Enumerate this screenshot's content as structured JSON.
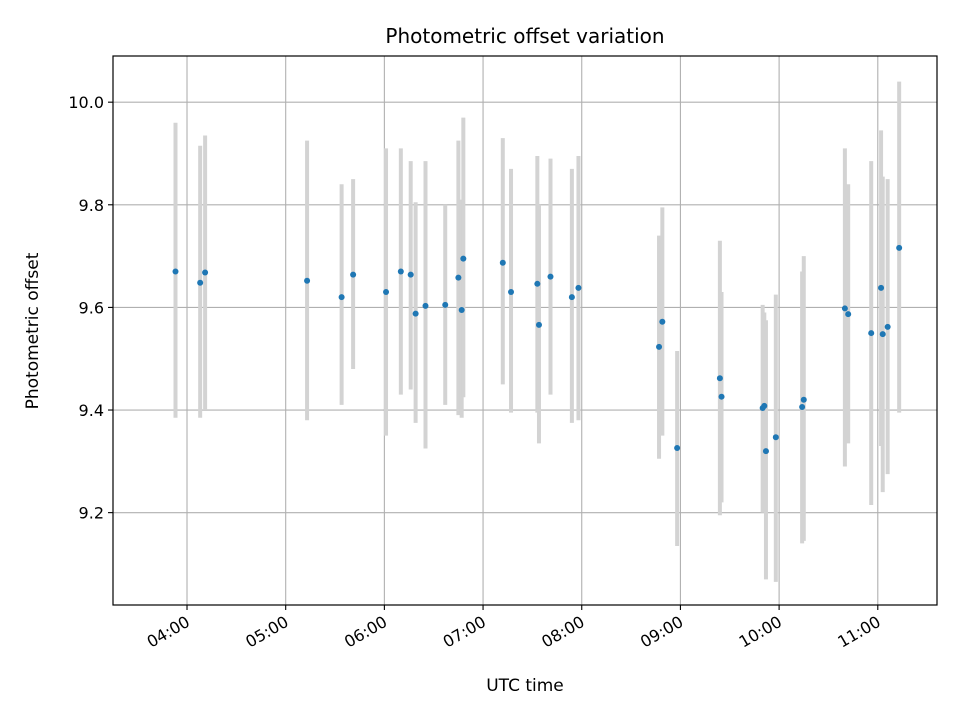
{
  "chart_data": {
    "type": "scatter",
    "title": "Photometric offset variation",
    "xlabel": "UTC time",
    "ylabel": "Photometric offset",
    "x_tick_labels": [
      "04:00",
      "05:00",
      "06:00",
      "07:00",
      "08:00",
      "09:00",
      "10:00",
      "11:00"
    ],
    "x_tick_hours": [
      4,
      5,
      6,
      7,
      8,
      9,
      10,
      11
    ],
    "y_ticks": [
      9.2,
      9.4,
      9.6,
      9.8,
      10.0
    ],
    "y_tick_labels": [
      "9.2",
      "9.4",
      "9.6",
      "9.8",
      "10.0"
    ],
    "xlim": [
      "03:15",
      "11:36"
    ],
    "ylim": [
      9.02,
      10.09
    ],
    "grid": true,
    "marker_color": "#1f77b4",
    "errorbar_color": "#d3d3d3",
    "series": [
      {
        "points": [
          {
            "x": "03:53",
            "y": 9.67,
            "lo": 9.385,
            "hi": 9.96
          },
          {
            "x": "04:08",
            "y": 9.648,
            "lo": 9.385,
            "hi": 9.915
          },
          {
            "x": "04:11",
            "y": 9.668,
            "lo": 9.4,
            "hi": 9.935
          },
          {
            "x": "05:13",
            "y": 9.652,
            "lo": 9.38,
            "hi": 9.925
          },
          {
            "x": "05:34",
            "y": 9.62,
            "lo": 9.41,
            "hi": 9.84
          },
          {
            "x": "05:41",
            "y": 9.664,
            "lo": 9.48,
            "hi": 9.85
          },
          {
            "x": "06:01",
            "y": 9.63,
            "lo": 9.35,
            "hi": 9.91
          },
          {
            "x": "06:10",
            "y": 9.67,
            "lo": 9.43,
            "hi": 9.91
          },
          {
            "x": "06:16",
            "y": 9.664,
            "lo": 9.44,
            "hi": 9.885
          },
          {
            "x": "06:19",
            "y": 9.588,
            "lo": 9.375,
            "hi": 9.805
          },
          {
            "x": "06:25",
            "y": 9.603,
            "lo": 9.325,
            "hi": 9.885
          },
          {
            "x": "06:37",
            "y": 9.605,
            "lo": 9.41,
            "hi": 9.8
          },
          {
            "x": "06:45",
            "y": 9.658,
            "lo": 9.39,
            "hi": 9.925
          },
          {
            "x": "06:47",
            "y": 9.595,
            "lo": 9.385,
            "hi": 9.81
          },
          {
            "x": "06:48",
            "y": 9.695,
            "lo": 9.425,
            "hi": 9.97
          },
          {
            "x": "07:12",
            "y": 9.687,
            "lo": 9.45,
            "hi": 9.93
          },
          {
            "x": "07:17",
            "y": 9.63,
            "lo": 9.395,
            "hi": 9.87
          },
          {
            "x": "07:33",
            "y": 9.646,
            "lo": 9.395,
            "hi": 9.895
          },
          {
            "x": "07:34",
            "y": 9.566,
            "lo": 9.335,
            "hi": 9.8
          },
          {
            "x": "07:41",
            "y": 9.66,
            "lo": 9.43,
            "hi": 9.89
          },
          {
            "x": "07:54",
            "y": 9.62,
            "lo": 9.375,
            "hi": 9.87
          },
          {
            "x": "07:58",
            "y": 9.638,
            "lo": 9.38,
            "hi": 9.895
          },
          {
            "x": "08:47",
            "y": 9.523,
            "lo": 9.305,
            "hi": 9.74
          },
          {
            "x": "08:49",
            "y": 9.572,
            "lo": 9.35,
            "hi": 9.795
          },
          {
            "x": "08:58",
            "y": 9.326,
            "lo": 9.135,
            "hi": 9.515
          },
          {
            "x": "09:24",
            "y": 9.462,
            "lo": 9.195,
            "hi": 9.73
          },
          {
            "x": "09:25",
            "y": 9.426,
            "lo": 9.22,
            "hi": 9.63
          },
          {
            "x": "09:50",
            "y": 9.404,
            "lo": 9.2,
            "hi": 9.605
          },
          {
            "x": "09:51",
            "y": 9.408,
            "lo": 9.2,
            "hi": 9.59
          },
          {
            "x": "09:52",
            "y": 9.32,
            "lo": 9.07,
            "hi": 9.575
          },
          {
            "x": "09:58",
            "y": 9.347,
            "lo": 9.065,
            "hi": 9.625
          },
          {
            "x": "10:14",
            "y": 9.406,
            "lo": 9.14,
            "hi": 9.67
          },
          {
            "x": "10:15",
            "y": 9.42,
            "lo": 9.145,
            "hi": 9.7
          },
          {
            "x": "10:40",
            "y": 9.598,
            "lo": 9.29,
            "hi": 9.91
          },
          {
            "x": "10:42",
            "y": 9.587,
            "lo": 9.335,
            "hi": 9.84
          },
          {
            "x": "10:56",
            "y": 9.55,
            "lo": 9.215,
            "hi": 9.885
          },
          {
            "x": "11:02",
            "y": 9.638,
            "lo": 9.33,
            "hi": 9.945
          },
          {
            "x": "11:03",
            "y": 9.548,
            "lo": 9.24,
            "hi": 9.855
          },
          {
            "x": "11:06",
            "y": 9.562,
            "lo": 9.275,
            "hi": 9.85
          },
          {
            "x": "11:13",
            "y": 9.716,
            "lo": 9.395,
            "hi": 10.04
          }
        ]
      }
    ]
  }
}
